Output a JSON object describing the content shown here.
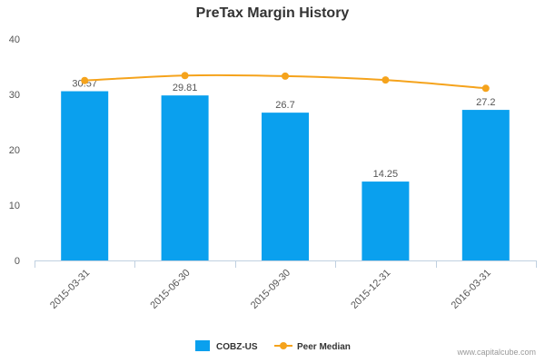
{
  "chart_data": {
    "type": "bar",
    "title": "PreTax Margin History",
    "categories": [
      "2015-03-31",
      "2015-06-30",
      "2015-09-30",
      "2015-12-31",
      "2016-03-31"
    ],
    "series": [
      {
        "name": "COBZ-US",
        "type": "bar",
        "color": "#0aa0ee",
        "values": [
          30.57,
          29.81,
          26.7,
          14.25,
          27.2
        ],
        "labels": [
          "30.57",
          "29.81",
          "26.7",
          "14.25",
          "27.2"
        ]
      },
      {
        "name": "Peer Median",
        "type": "line",
        "color": "#f5a31c",
        "values": [
          32.5,
          33.4,
          33.3,
          32.6,
          31.1
        ]
      }
    ],
    "ylim": [
      0,
      40
    ],
    "yticks": [
      0,
      10,
      20,
      30,
      40
    ],
    "ytick_labels": [
      "0",
      "10",
      "20",
      "30",
      "40"
    ],
    "xlabel": "",
    "ylabel": "",
    "grid": false,
    "legend_position": "bottom"
  },
  "watermark": "www.capitalcube.com"
}
